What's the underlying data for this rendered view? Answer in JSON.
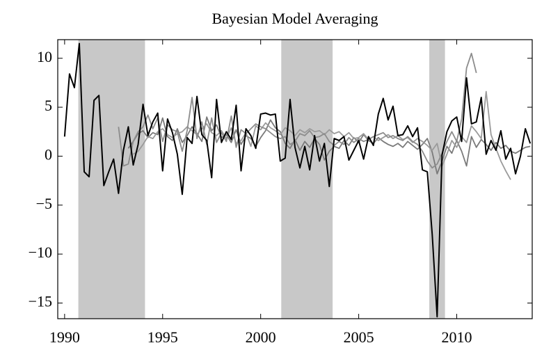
{
  "chart_data": {
    "type": "line",
    "title": "Bayesian Model Averaging",
    "x": [
      1990,
      1990.25,
      1990.5,
      1990.75,
      1991,
      1991.25,
      1991.5,
      1991.75,
      1992,
      1992.25,
      1992.5,
      1992.75,
      1993,
      1993.25,
      1993.5,
      1993.75,
      1994,
      1994.25,
      1994.5,
      1994.75,
      1995,
      1995.25,
      1995.5,
      1995.75,
      1996,
      1996.25,
      1996.5,
      1996.75,
      1997,
      1997.25,
      1997.5,
      1997.75,
      1998,
      1998.25,
      1998.5,
      1998.75,
      1999,
      1999.25,
      1999.5,
      1999.75,
      2000,
      2000.25,
      2000.5,
      2000.75,
      2001,
      2001.25,
      2001.5,
      2001.75,
      2002,
      2002.25,
      2002.5,
      2002.75,
      2003,
      2003.25,
      2003.5,
      2003.75,
      2004,
      2004.25,
      2004.5,
      2004.75,
      2005,
      2005.25,
      2005.5,
      2005.75,
      2006,
      2006.25,
      2006.5,
      2006.75,
      2007,
      2007.25,
      2007.5,
      2007.75,
      2008,
      2008.25,
      2008.5,
      2008.75,
      2009,
      2009.25,
      2009.5,
      2009.75,
      2010,
      2010.25,
      2010.5,
      2010.75,
      2011,
      2011.25,
      2011.5,
      2011.75,
      2012,
      2012.25,
      2012.5,
      2012.75,
      2013,
      2013.25,
      2013.5,
      2013.75
    ],
    "series": [
      {
        "color": "#000000",
        "values": [
          2,
          8.4,
          7,
          11.5,
          -1.6,
          -2.1,
          5.7,
          6.2,
          -3,
          -1.6,
          -0.3,
          -3.8,
          0.6,
          3,
          -0.9,
          1.2,
          5.3,
          2.1,
          3.5,
          4.4,
          -1.5,
          3.8,
          2.4,
          0.2,
          -3.9,
          1.9,
          1.3,
          6.1,
          2.2,
          1.6,
          -2.2,
          5.8,
          1.4,
          2.5,
          1.7,
          5.2,
          -1.5,
          2.8,
          2.1,
          0.8,
          4.3,
          4.4,
          4.2,
          4.3,
          -0.5,
          -0.2,
          5.8,
          0.9,
          -1.2,
          1.0,
          -1.4,
          2.1,
          -0.5,
          1.3,
          -3.1,
          1.8,
          1.6,
          2.0,
          -0.4,
          0.6,
          1.6,
          -0.3,
          2.0,
          1.1,
          4.3,
          5.9,
          3.7,
          5.1,
          2.1,
          2.2,
          3.1,
          2.0,
          2.9,
          -1.4,
          -1.6,
          -8.0,
          -16.4,
          0.1,
          2.5,
          3.6,
          4.0,
          1.5,
          8.0,
          3.3,
          3.5,
          6.0,
          0.2,
          1.6,
          0.6,
          2.6,
          -0.3,
          0.8,
          -1.8,
          0.0,
          2.8,
          1.3
        ]
      },
      {
        "color": "#8c8c8c",
        "values": [
          null,
          null,
          null,
          null,
          null,
          null,
          null,
          null,
          null,
          null,
          null,
          3.0,
          -1.0,
          -0.8,
          1.5,
          2.5,
          3.0,
          4.2,
          2.8,
          3.9,
          1.5,
          3.2,
          2.7,
          2.5,
          0.5,
          2.6,
          6.0,
          1.8,
          3.5,
          1.2,
          3.9,
          1.4,
          2.4,
          1.5,
          4.1,
          0.9,
          2.7,
          2.3,
          2.8,
          3.3,
          3.0,
          2.8,
          2.4,
          2.0,
          1.8,
          2.0,
          1.2,
          1.5,
          2.3,
          2.1,
          2.6,
          1.9,
          2.0,
          2.3,
          1.5,
          1.1,
          1.5,
          1.2,
          1.9,
          1.4,
          1.8,
          1.5,
          1.7,
          2.0,
          2.2,
          2.4,
          1.9,
          2.1,
          1.8,
          1.6,
          2.0,
          1.5,
          1.2,
          0.5,
          -0.5,
          -1.2,
          -0.8,
          0.3,
          1.5,
          2.5,
          1.5,
          3.8,
          9.0,
          10.5,
          8.5,
          null,
          null,
          null,
          null,
          null,
          null,
          null,
          null,
          null,
          null,
          null
        ]
      },
      {
        "color": "#9a9a9a",
        "values": [
          null,
          null,
          null,
          null,
          null,
          null,
          null,
          null,
          null,
          null,
          null,
          null,
          null,
          null,
          0.2,
          0.5,
          1.2,
          2.0,
          1.8,
          2.5,
          2.8,
          2.2,
          1.9,
          2.3,
          2.5,
          3.0,
          2.6,
          2.2,
          2.8,
          3.3,
          2.4,
          2.1,
          2.6,
          1.8,
          2.9,
          1.3,
          1.6,
          2.4,
          1.0,
          3.1,
          2.7,
          3.4,
          2.9,
          2.6,
          2.2,
          2.9,
          2.6,
          2.1,
          2.7,
          2.4,
          2.8,
          2.5,
          2.6,
          2.2,
          2.7,
          2.3,
          2.5,
          2.0,
          2.4,
          1.8,
          1.9,
          2.3,
          1.7,
          2.0,
          1.6,
          1.9,
          2.2,
          1.8,
          2.1,
          1.7,
          1.9,
          1.4,
          1.8,
          1.5,
          1.1,
          0.6,
          1.3,
          -1.0,
          0.2,
          1.6,
          0.9,
          2.0,
          1.4,
          3.1,
          2.5,
          1.8,
          6.6,
          2.2,
          0.8,
          -0.5,
          -1.5,
          -2.4,
          null,
          null,
          null,
          null
        ]
      },
      {
        "color": "#7a7a7a",
        "values": [
          null,
          null,
          null,
          null,
          null,
          null,
          null,
          null,
          null,
          null,
          null,
          null,
          null,
          0.8,
          1.5,
          2.3,
          2.6,
          1.9,
          2.4,
          2.2,
          3.9,
          2.0,
          1.6,
          2.8,
          1.4,
          2.1,
          3.0,
          2.3,
          1.5,
          4.0,
          2.6,
          3.2,
          1.9,
          2.2,
          1.4,
          2.7,
          1.2,
          2.1,
          1.8,
          1.0,
          1.9,
          2.6,
          3.7,
          2.9,
          2.5,
          1.3,
          0.8,
          1.7,
          0.6,
          1.5,
          0.9,
          1.8,
          1.2,
          -0.4,
          0.5,
          1.0,
          0.8,
          1.6,
          1.1,
          1.9,
          1.4,
          2.2,
          1.6,
          1.3,
          1.9,
          1.5,
          1.2,
          1.0,
          1.3,
          0.9,
          1.5,
          1.1,
          0.7,
          1.2,
          1.8,
          0.4,
          -1.8,
          -0.5,
          1.0,
          0.3,
          1.6,
          0.5,
          -1.0,
          2.0,
          0.9,
          1.7,
          1.2,
          0.6,
          1.4,
          0.8,
          1.1,
          0.5,
          0.3,
          0.6,
          0.9,
          1.0
        ]
      }
    ],
    "shaded_periods": [
      [
        1990.7,
        1994.1
      ],
      [
        2001.05,
        2003.67
      ],
      [
        2008.6,
        2009.4
      ]
    ],
    "shade_color": "#c8c8c8",
    "xlim": [
      1989.65,
      2013.85
    ],
    "xticks": [
      1990,
      1995,
      2000,
      2005,
      2010
    ],
    "ylim": [
      -16.6,
      11.9
    ],
    "yticks": [
      {
        "value": -15,
        "label": "−15"
      },
      {
        "value": -10,
        "label": "−10"
      },
      {
        "value": -5,
        "label": "−5"
      },
      0,
      5,
      10
    ],
    "grid": false
  }
}
